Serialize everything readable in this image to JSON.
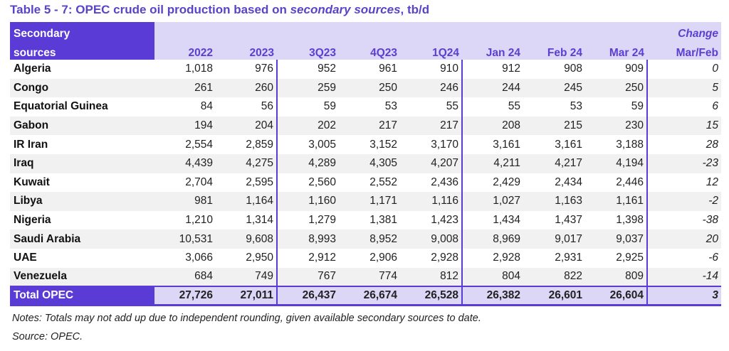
{
  "title": {
    "prefix": "Table 5 - 7: OPEC crude oil production based on ",
    "italic": "secondary sources",
    "suffix": ", tb/d"
  },
  "header": {
    "name_line1": "Secondary",
    "name_line2": "sources",
    "columns": [
      "2022",
      "2023",
      "3Q23",
      "4Q23",
      "1Q24",
      "Jan 24",
      "Feb 24",
      "Mar 24"
    ],
    "change_line1": "Change",
    "change_line2": "Mar/Feb"
  },
  "rows": [
    {
      "name": "Algeria",
      "values": [
        "1,018",
        "976",
        "952",
        "961",
        "910",
        "912",
        "908",
        "909"
      ],
      "change": "0"
    },
    {
      "name": "Congo",
      "values": [
        "261",
        "260",
        "259",
        "250",
        "246",
        "244",
        "245",
        "250"
      ],
      "change": "5"
    },
    {
      "name": "Equatorial Guinea",
      "values": [
        "84",
        "56",
        "59",
        "53",
        "55",
        "55",
        "53",
        "59"
      ],
      "change": "6"
    },
    {
      "name": "Gabon",
      "values": [
        "194",
        "204",
        "202",
        "217",
        "217",
        "208",
        "215",
        "230"
      ],
      "change": "15"
    },
    {
      "name": "IR Iran",
      "values": [
        "2,554",
        "2,859",
        "3,005",
        "3,152",
        "3,170",
        "3,161",
        "3,161",
        "3,188"
      ],
      "change": "28"
    },
    {
      "name": "Iraq",
      "values": [
        "4,439",
        "4,275",
        "4,289",
        "4,305",
        "4,207",
        "4,211",
        "4,217",
        "4,194"
      ],
      "change": "-23"
    },
    {
      "name": "Kuwait",
      "values": [
        "2,704",
        "2,595",
        "2,560",
        "2,552",
        "2,436",
        "2,429",
        "2,434",
        "2,446"
      ],
      "change": "12"
    },
    {
      "name": "Libya",
      "values": [
        "981",
        "1,164",
        "1,160",
        "1,171",
        "1,116",
        "1,027",
        "1,163",
        "1,161"
      ],
      "change": "-2"
    },
    {
      "name": "Nigeria",
      "values": [
        "1,210",
        "1,314",
        "1,279",
        "1,381",
        "1,423",
        "1,434",
        "1,437",
        "1,398"
      ],
      "change": "-38"
    },
    {
      "name": "Saudi Arabia",
      "values": [
        "10,531",
        "9,608",
        "8,993",
        "8,952",
        "9,008",
        "8,969",
        "9,017",
        "9,037"
      ],
      "change": "20"
    },
    {
      "name": "UAE",
      "values": [
        "3,066",
        "2,950",
        "2,912",
        "2,906",
        "2,928",
        "2,928",
        "2,931",
        "2,925"
      ],
      "change": "-6"
    },
    {
      "name": "Venezuela",
      "values": [
        "684",
        "749",
        "767",
        "774",
        "812",
        "804",
        "822",
        "809"
      ],
      "change": "-14"
    }
  ],
  "total": {
    "name": "Total  OPEC",
    "values": [
      "27,726",
      "27,011",
      "26,437",
      "26,674",
      "26,528",
      "26,382",
      "26,601",
      "26,604"
    ],
    "change": "3"
  },
  "notes": "Notes: Totals may not add up due to independent rounding, given available secondary sources to date.",
  "source": "Source: OPEC.",
  "colors": {
    "accent": "#5a3bd6",
    "header_bg": "#dcd6f7",
    "stripe": "#f1f1f1"
  }
}
